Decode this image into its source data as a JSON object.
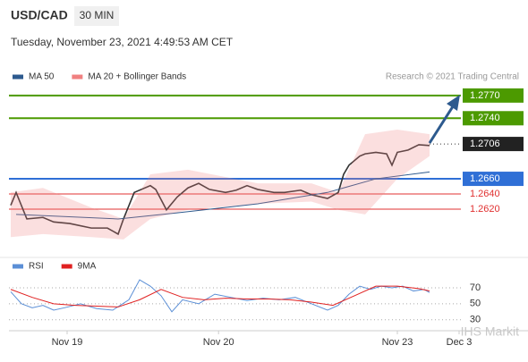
{
  "header": {
    "symbol": "USD/CAD",
    "interval": "30 MIN",
    "timestamp": "Tuesday, November 23, 2021 4:49:53 AM CET",
    "credit": "Research © 2021 Trading Central",
    "watermark": "IHS Markit"
  },
  "chart_data": [
    {
      "type": "line",
      "xlim": [
        0,
        85
      ],
      "ylim": [
        1.2568,
        1.2784
      ],
      "series": [
        {
          "color": "#333333",
          "x": [
            0,
            1,
            3,
            6,
            8,
            11,
            15,
            18,
            20,
            21,
            23,
            26,
            27,
            29,
            31,
            33,
            35,
            37,
            40,
            42,
            44,
            46,
            49,
            51,
            54,
            56,
            59,
            61,
            62,
            63,
            65,
            66,
            68,
            70,
            71,
            72,
            74,
            76,
            78
          ],
          "values": [
            1.2625,
            1.2642,
            1.2607,
            1.2609,
            1.2603,
            1.2601,
            1.2595,
            1.2595,
            1.2587,
            1.2607,
            1.2642,
            1.2651,
            1.2646,
            1.2619,
            1.2636,
            1.2648,
            1.2654,
            1.2646,
            1.2642,
            1.2645,
            1.2651,
            1.2646,
            1.2642,
            1.2642,
            1.2645,
            1.2639,
            1.2634,
            1.2642,
            1.2666,
            1.2678,
            1.269,
            1.2693,
            1.2695,
            1.2693,
            1.2678,
            1.2695,
            1.2698,
            1.2705,
            1.2704
          ]
        },
        {
          "name": "MA 50",
          "color": "#2d5a8e",
          "x": [
            1,
            20,
            31,
            46,
            59,
            68,
            78
          ],
          "values": [
            1.2613,
            1.2607,
            1.2615,
            1.2627,
            1.2642,
            1.266,
            1.2669
          ]
        },
        {
          "name": "MA 20 + Bollinger Bands",
          "color": "#f08080",
          "x": [
            0,
            6,
            15,
            21,
            26,
            33,
            46,
            56,
            61,
            66,
            72,
            78
          ],
          "upper": [
            1.2642,
            1.2648,
            1.2622,
            1.2607,
            1.2666,
            1.2672,
            1.2654,
            1.2654,
            1.2642,
            1.2719,
            1.2725,
            1.2719
          ],
          "lower": [
            1.2583,
            1.2587,
            1.2583,
            1.258,
            1.2607,
            1.2619,
            1.2627,
            1.263,
            1.2619,
            1.2613,
            1.266,
            1.269
          ]
        }
      ],
      "levels": [
        {
          "value": 1.277,
          "label": "1.2770",
          "color": "#4c9a00",
          "box": true,
          "line": "solid"
        },
        {
          "value": 1.274,
          "label": "1.2740",
          "color": "#4c9a00",
          "box": true,
          "line": "solid"
        },
        {
          "value": 1.2706,
          "label": "1.2706",
          "color": "#222222",
          "box": true,
          "line": "dotted"
        },
        {
          "value": 1.266,
          "label": "1.2660",
          "color": "#2f6fd6",
          "box": true,
          "line": "solid"
        },
        {
          "value": 1.264,
          "label": "1.2640",
          "color": "#e03030",
          "box": false,
          "line": "solid"
        },
        {
          "value": 1.262,
          "label": "1.2620",
          "color": "#e03030",
          "box": false,
          "line": "solid"
        }
      ]
    },
    {
      "type": "line",
      "xlim": [
        0,
        85
      ],
      "ylim": [
        14,
        89
      ],
      "yticks": [
        30,
        50,
        70
      ],
      "grid": true,
      "xticks": [
        {
          "value": 10.5,
          "label": "Nov 19"
        },
        {
          "value": 38.7,
          "label": "Nov 20"
        },
        {
          "value": 72,
          "label": "Nov 23"
        },
        {
          "value": 83.5,
          "label": "Dec 3"
        }
      ],
      "series": [
        {
          "name": "RSI",
          "color": "#5b8fd6",
          "x": [
            0,
            2,
            4,
            6,
            8,
            10,
            13,
            16,
            19,
            22,
            24,
            26,
            28,
            30,
            32,
            35,
            38,
            41,
            44,
            47,
            50,
            53,
            56,
            59,
            61,
            63,
            65,
            67,
            69,
            71,
            73,
            75,
            77,
            78
          ],
          "values": [
            65,
            50,
            45,
            48,
            42,
            45,
            50,
            44,
            42,
            55,
            80,
            72,
            60,
            40,
            55,
            50,
            62,
            58,
            54,
            57,
            55,
            58,
            50,
            42,
            48,
            62,
            72,
            68,
            72,
            70,
            72,
            66,
            68,
            64
          ]
        },
        {
          "name": "9MA",
          "color": "#e02020",
          "x": [
            0,
            4,
            8,
            12,
            16,
            20,
            24,
            28,
            32,
            36,
            40,
            44,
            48,
            52,
            56,
            60,
            64,
            68,
            72,
            76,
            78
          ],
          "values": [
            68,
            58,
            50,
            48,
            47,
            46,
            55,
            68,
            58,
            55,
            57,
            56,
            56,
            55,
            52,
            48,
            60,
            72,
            72,
            69,
            66
          ]
        }
      ]
    }
  ]
}
